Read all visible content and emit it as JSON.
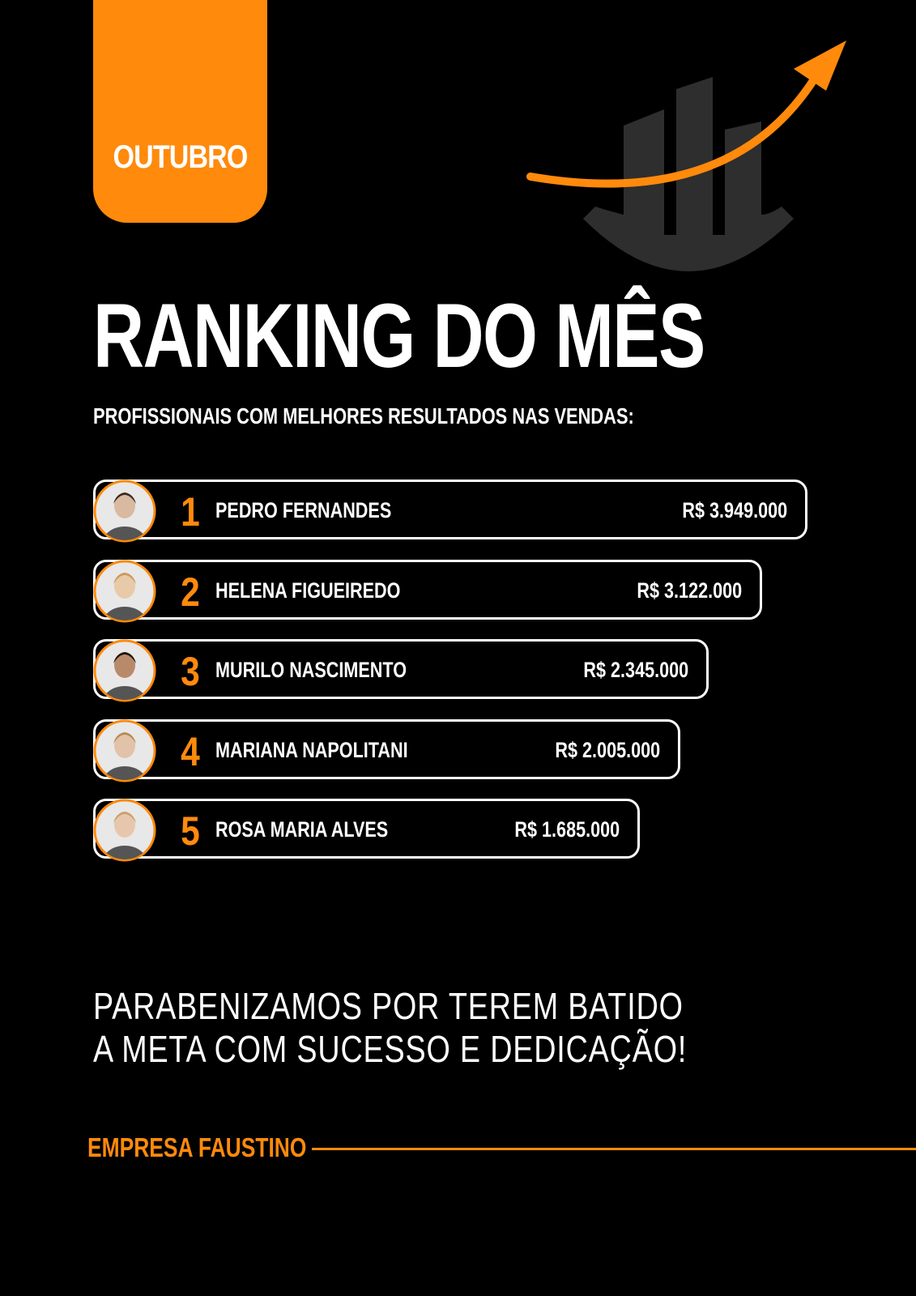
{
  "header": {
    "month": "OUTUBRO",
    "title": "RANKING DO MÊS",
    "subtitle": "PROFISSIONAIS COM MELHORES RESULTADOS NAS VENDAS:"
  },
  "ranking": [
    {
      "rank": "1",
      "name": "PEDRO FERNANDES",
      "value": "R$ 3.949.000"
    },
    {
      "rank": "2",
      "name": "HELENA FIGUEIREDO",
      "value": "R$ 3.122.000"
    },
    {
      "rank": "3",
      "name": "MURILO NASCIMENTO",
      "value": "R$ 2.345.000"
    },
    {
      "rank": "4",
      "name": "MARIANA NAPOLITANI",
      "value": "R$ 2.005.000"
    },
    {
      "rank": "5",
      "name": "ROSA MARIA ALVES",
      "value": "R$ 1.685.000"
    }
  ],
  "message": {
    "line1": "PARABENIZAMOS POR TEREM BATIDO",
    "line2": "A META COM SUCESSO E DEDICAÇÃO!"
  },
  "footer": {
    "company": "EMPRESA FAUSTINO"
  }
}
